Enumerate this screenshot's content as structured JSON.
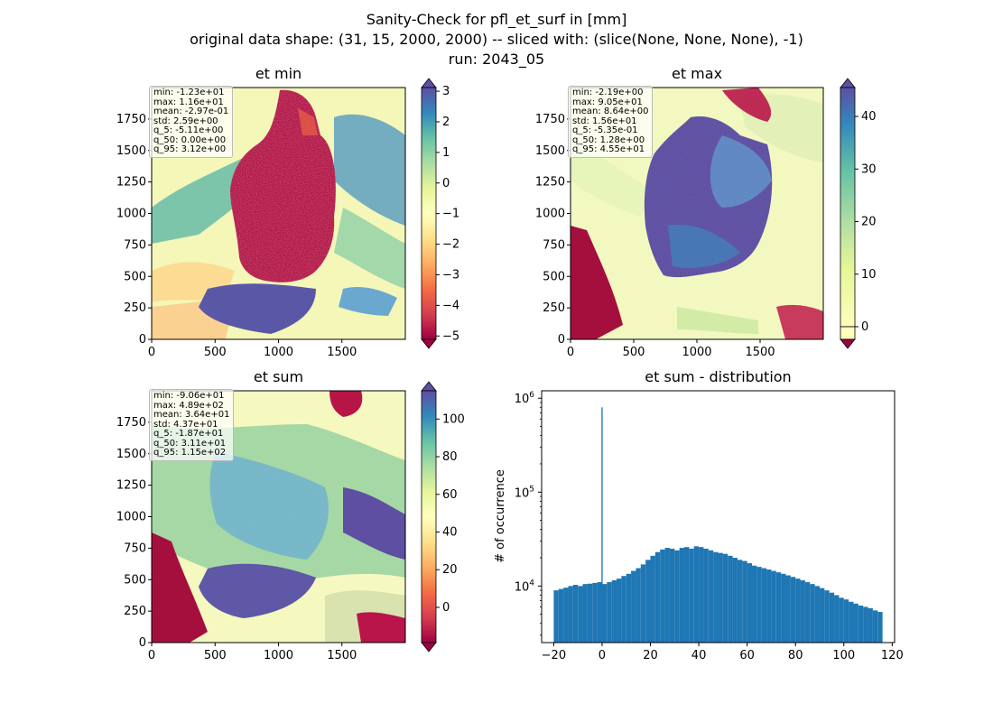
{
  "figure": {
    "suptitle_1": "Sanity-Check for pfl_et_surf in [mm]",
    "suptitle_2": "original data shape: (31, 15, 2000, 2000) -- sliced with: (slice(None, None, None), -1)",
    "suptitle_3": "run: 2043_05"
  },
  "panels": {
    "et_min": {
      "title": "et min",
      "stats": [
        "min: -1.23e+01",
        "max: 1.16e+01",
        "mean: -2.97e-01",
        "std: 2.59e+00",
        "q_5: -5.11e+00",
        "q_50: 0.00e+00",
        "q_95: 3.12e+00"
      ],
      "colorbar_ticks": [
        "3",
        "2",
        "1",
        "0",
        "−1",
        "−2",
        "−3",
        "−4",
        "−5"
      ]
    },
    "et_max": {
      "title": "et max",
      "stats": [
        "min: -2.19e+00",
        "max: 9.05e+01",
        "mean: 8.64e+00",
        "std: 1.56e+01",
        "q_5: -5.35e-01",
        "q_50: 1.28e+00",
        "q_95: 4.55e+01"
      ],
      "colorbar_ticks": [
        "40",
        "30",
        "20",
        "10",
        "0"
      ]
    },
    "et_sum": {
      "title": "et sum",
      "stats": [
        "min: -9.06e+01",
        "max: 4.89e+02",
        "mean: 3.64e+01",
        "std: 4.37e+01",
        "q_5: -1.87e+01",
        "q_50: 3.11e+01",
        "q_95: 1.15e+02"
      ],
      "colorbar_ticks": [
        "100",
        "80",
        "60",
        "40",
        "20",
        "0"
      ]
    },
    "dist": {
      "title": "et sum - distribution",
      "ylabel": "# of occurrence"
    }
  },
  "map_axis": {
    "y_ticks": [
      "1750",
      "1500",
      "1250",
      "1000",
      "750",
      "500",
      "250",
      "0"
    ],
    "x_ticks": [
      "0",
      "500",
      "1000",
      "1500"
    ]
  },
  "chart_data": [
    {
      "type": "heatmap",
      "title": "et min",
      "colormap": "Spectral",
      "x_range": [
        0,
        2000
      ],
      "y_range": [
        0,
        2000
      ],
      "color_range": [
        -5.11,
        3.12
      ]
    },
    {
      "type": "heatmap",
      "title": "et max",
      "colormap": "Spectral",
      "x_range": [
        0,
        2000
      ],
      "y_range": [
        0,
        2000
      ],
      "color_range": [
        0,
        45.5
      ]
    },
    {
      "type": "heatmap",
      "title": "et sum",
      "colormap": "Spectral",
      "x_range": [
        0,
        2000
      ],
      "y_range": [
        0,
        2000
      ],
      "color_range": [
        -18.7,
        115
      ]
    },
    {
      "type": "bar",
      "title": "et sum - distribution",
      "ylabel": "# of occurrence",
      "yscale": "log",
      "xlim": [
        -25,
        121
      ],
      "ylim": [
        2500,
        1200000
      ],
      "x_ticks": [
        -20,
        0,
        20,
        40,
        60,
        80,
        100,
        120
      ],
      "y_ticks": [
        10000,
        100000,
        1000000
      ],
      "bar_color": "#1f77b4",
      "x": [
        -19,
        -17,
        -15,
        -13,
        -11,
        -9,
        -7,
        -5,
        -3,
        -1,
        0,
        1,
        3,
        5,
        7,
        9,
        11,
        13,
        15,
        17,
        19,
        21,
        23,
        25,
        27,
        29,
        31,
        33,
        35,
        37,
        39,
        41,
        43,
        45,
        47,
        49,
        51,
        53,
        55,
        57,
        59,
        61,
        63,
        65,
        67,
        69,
        71,
        73,
        75,
        77,
        79,
        81,
        83,
        85,
        87,
        89,
        91,
        93,
        95,
        97,
        99,
        101,
        103,
        105,
        107,
        109,
        111,
        113,
        115
      ],
      "values": [
        9000,
        9300,
        9600,
        10000,
        10300,
        10000,
        10500,
        10600,
        10800,
        11000,
        800000,
        10500,
        11000,
        11500,
        12000,
        12800,
        13500,
        14500,
        15500,
        17000,
        19000,
        21000,
        23000,
        24500,
        25500,
        25000,
        24000,
        25500,
        26000,
        25000,
        26500,
        26000,
        25000,
        24000,
        23000,
        22500,
        22000,
        21000,
        20000,
        19000,
        18500,
        17500,
        16500,
        16000,
        15500,
        15000,
        14500,
        14000,
        13500,
        13000,
        12500,
        12000,
        11500,
        11000,
        10500,
        10000,
        9500,
        9000,
        8500,
        8000,
        7500,
        7200,
        6800,
        6500,
        6200,
        6000,
        5800,
        5500,
        5300
      ]
    }
  ]
}
